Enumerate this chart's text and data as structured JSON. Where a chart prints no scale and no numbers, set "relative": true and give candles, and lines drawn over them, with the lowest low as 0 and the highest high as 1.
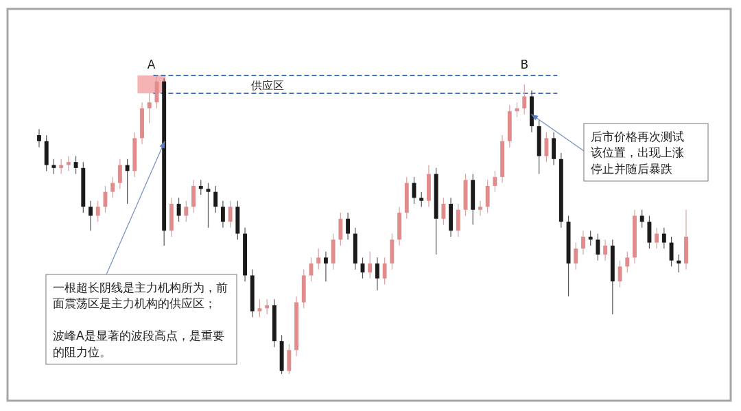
{
  "chart_data": {
    "type": "candlestick",
    "relative": true,
    "categories": [
      null,
      null,
      null,
      null,
      null,
      null,
      null,
      null,
      null,
      null,
      null,
      null,
      null,
      null,
      null,
      null,
      null,
      null,
      null,
      null,
      null,
      null,
      null,
      null,
      null,
      null,
      null,
      null,
      null,
      null,
      null,
      null,
      null,
      null,
      null,
      null,
      null,
      null,
      null,
      null,
      null,
      null,
      null,
      null,
      null,
      null,
      null,
      null,
      null,
      null,
      null,
      null,
      null,
      null,
      null,
      null,
      null,
      null,
      null,
      null,
      null,
      null,
      null,
      null,
      null,
      null,
      null,
      null,
      null,
      null,
      null,
      null,
      null,
      null,
      null,
      null,
      null,
      null,
      null,
      null,
      null,
      null,
      null,
      null,
      null,
      null,
      null,
      null,
      null
    ],
    "ohlc": [
      [
        0.8,
        0.82,
        0.76,
        0.78
      ],
      [
        0.78,
        0.8,
        0.68,
        0.7
      ],
      [
        0.7,
        0.72,
        0.67,
        0.69
      ],
      [
        0.69,
        0.72,
        0.67,
        0.7
      ],
      [
        0.7,
        0.73,
        0.68,
        0.71
      ],
      [
        0.71,
        0.73,
        0.67,
        0.69
      ],
      [
        0.69,
        0.71,
        0.54,
        0.56
      ],
      [
        0.56,
        0.58,
        0.48,
        0.53
      ],
      [
        0.53,
        0.58,
        0.51,
        0.56
      ],
      [
        0.56,
        0.63,
        0.54,
        0.61
      ],
      [
        0.61,
        0.66,
        0.59,
        0.64
      ],
      [
        0.64,
        0.72,
        0.62,
        0.7
      ],
      [
        0.7,
        0.72,
        0.57,
        0.68
      ],
      [
        0.68,
        0.81,
        0.66,
        0.79
      ],
      [
        0.79,
        0.91,
        0.77,
        0.89
      ],
      [
        0.89,
        0.94,
        0.84,
        0.91
      ],
      [
        0.91,
        1.0,
        0.89,
        0.98
      ],
      [
        0.98,
        0.99,
        0.43,
        0.48
      ],
      [
        0.48,
        0.59,
        0.46,
        0.57
      ],
      [
        0.57,
        0.59,
        0.51,
        0.53
      ],
      [
        0.53,
        0.58,
        0.51,
        0.56
      ],
      [
        0.56,
        0.65,
        0.54,
        0.63
      ],
      [
        0.63,
        0.65,
        0.6,
        0.62
      ],
      [
        0.62,
        0.64,
        0.49,
        0.61
      ],
      [
        0.61,
        0.63,
        0.54,
        0.56
      ],
      [
        0.56,
        0.58,
        0.49,
        0.51
      ],
      [
        0.51,
        0.58,
        0.49,
        0.56
      ],
      [
        0.56,
        0.58,
        0.45,
        0.47
      ],
      [
        0.47,
        0.49,
        0.31,
        0.33
      ],
      [
        0.33,
        0.35,
        0.19,
        0.21
      ],
      [
        0.21,
        0.25,
        0.19,
        0.22
      ],
      [
        0.22,
        0.25,
        0.2,
        0.23
      ],
      [
        0.23,
        0.25,
        0.09,
        0.11
      ],
      [
        0.11,
        0.13,
        0.0,
        0.01
      ],
      [
        0.01,
        0.1,
        0.0,
        0.08
      ],
      [
        0.08,
        0.26,
        0.06,
        0.24
      ],
      [
        0.24,
        0.35,
        0.22,
        0.33
      ],
      [
        0.33,
        0.39,
        0.31,
        0.37
      ],
      [
        0.37,
        0.42,
        0.35,
        0.39
      ],
      [
        0.39,
        0.41,
        0.31,
        0.37
      ],
      [
        0.37,
        0.47,
        0.35,
        0.45
      ],
      [
        0.45,
        0.54,
        0.43,
        0.52
      ],
      [
        0.52,
        0.54,
        0.45,
        0.47
      ],
      [
        0.47,
        0.49,
        0.35,
        0.37
      ],
      [
        0.37,
        0.39,
        0.32,
        0.34
      ],
      [
        0.34,
        0.41,
        0.32,
        0.37
      ],
      [
        0.37,
        0.39,
        0.28,
        0.32
      ],
      [
        0.32,
        0.39,
        0.3,
        0.37
      ],
      [
        0.37,
        0.47,
        0.35,
        0.45
      ],
      [
        0.45,
        0.56,
        0.43,
        0.54
      ],
      [
        0.54,
        0.66,
        0.52,
        0.64
      ],
      [
        0.64,
        0.66,
        0.57,
        0.59
      ],
      [
        0.59,
        0.61,
        0.56,
        0.58
      ],
      [
        0.58,
        0.7,
        0.56,
        0.67
      ],
      [
        0.67,
        0.69,
        0.4,
        0.52
      ],
      [
        0.52,
        0.59,
        0.5,
        0.57
      ],
      [
        0.57,
        0.59,
        0.46,
        0.48
      ],
      [
        0.48,
        0.57,
        0.46,
        0.55
      ],
      [
        0.55,
        0.67,
        0.53,
        0.65
      ],
      [
        0.65,
        0.67,
        0.5,
        0.55
      ],
      [
        0.55,
        0.58,
        0.53,
        0.56
      ],
      [
        0.56,
        0.65,
        0.54,
        0.63
      ],
      [
        0.63,
        0.68,
        0.61,
        0.66
      ],
      [
        0.66,
        0.8,
        0.64,
        0.78
      ],
      [
        0.78,
        0.9,
        0.76,
        0.88
      ],
      [
        0.88,
        0.91,
        0.86,
        0.89
      ],
      [
        0.89,
        0.97,
        0.87,
        0.93
      ],
      [
        0.93,
        0.95,
        0.81,
        0.83
      ],
      [
        0.83,
        0.85,
        0.67,
        0.73
      ],
      [
        0.73,
        0.81,
        0.71,
        0.79
      ],
      [
        0.79,
        0.81,
        0.7,
        0.72
      ],
      [
        0.72,
        0.74,
        0.49,
        0.51
      ],
      [
        0.51,
        0.53,
        0.26,
        0.37
      ],
      [
        0.37,
        0.44,
        0.35,
        0.42
      ],
      [
        0.42,
        0.48,
        0.4,
        0.46
      ],
      [
        0.46,
        0.48,
        0.43,
        0.45
      ],
      [
        0.45,
        0.47,
        0.38,
        0.4
      ],
      [
        0.4,
        0.45,
        0.38,
        0.43
      ],
      [
        0.43,
        0.45,
        0.2,
        0.31
      ],
      [
        0.31,
        0.38,
        0.29,
        0.36
      ],
      [
        0.36,
        0.41,
        0.34,
        0.39
      ],
      [
        0.39,
        0.55,
        0.37,
        0.53
      ],
      [
        0.53,
        0.55,
        0.49,
        0.51
      ],
      [
        0.51,
        0.53,
        0.42,
        0.44
      ],
      [
        0.44,
        0.49,
        0.42,
        0.47
      ],
      [
        0.47,
        0.49,
        0.42,
        0.44
      ],
      [
        0.44,
        0.46,
        0.36,
        0.38
      ],
      [
        0.38,
        0.4,
        0.34,
        0.37
      ],
      [
        0.37,
        0.55,
        0.35,
        0.46
      ]
    ],
    "ref_lines": [
      {
        "axis": "y",
        "value": 1.0,
        "color": "#4472c4",
        "line_style": "dashed"
      },
      {
        "axis": "y",
        "value": 0.94,
        "color": "#4472c4",
        "line_style": "dashed",
        "label": "供应区"
      }
    ],
    "annotations": [
      {
        "text": "A",
        "y": 1.0
      },
      {
        "text": "B",
        "y": 0.97
      },
      "一根超长阴线是主力机构所为，前面震荡区是主力机构的供应区；",
      "波峰A是显著的波段高点，是重要的阻力位。",
      "后市价格再次测试该位置，出现上涨停止并随后暴跌"
    ]
  }
}
